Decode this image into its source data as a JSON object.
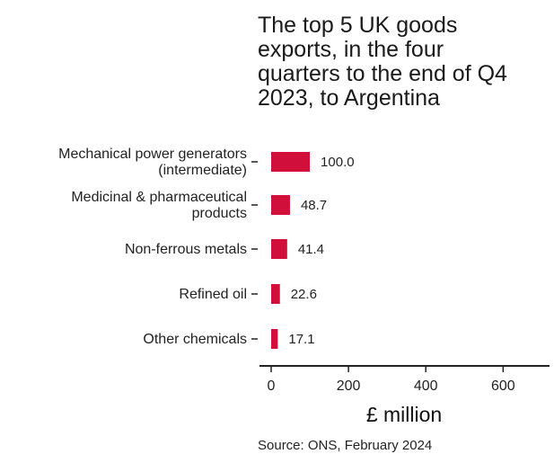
{
  "chart_data": {
    "type": "bar",
    "orientation": "horizontal",
    "title": "The top 5 UK goods exports, in the four quarters to the end of Q4 2023, to Argentina",
    "title_lines": [
      "The top 5 UK goods",
      "exports, in the four",
      "quarters to the end of Q4",
      "2023, to Argentina"
    ],
    "categories": [
      "Mechanical power generators (intermediate)",
      "Medicinal & pharmaceutical products",
      "Non-ferrous metals",
      "Refined oil",
      "Other chemicals"
    ],
    "category_lines": [
      [
        "Mechanical power generators",
        "(intermediate)"
      ],
      [
        "Medicinal & pharmaceutical",
        "products"
      ],
      [
        "Non-ferrous metals"
      ],
      [
        "Refined oil"
      ],
      [
        "Other chemicals"
      ]
    ],
    "values": [
      100.0,
      48.7,
      41.4,
      22.6,
      17.1
    ],
    "value_labels": [
      "100.0",
      "48.7",
      "41.4",
      "22.6",
      "17.1"
    ],
    "xlabel": "£ million",
    "xlim": [
      0,
      720
    ],
    "xticks": [
      0,
      200,
      400,
      600
    ],
    "xtick_labels": [
      "0",
      "200",
      "400",
      "600"
    ],
    "grid": false,
    "bar_color": "#d0103a",
    "source": "Source: ONS, February 2024"
  }
}
